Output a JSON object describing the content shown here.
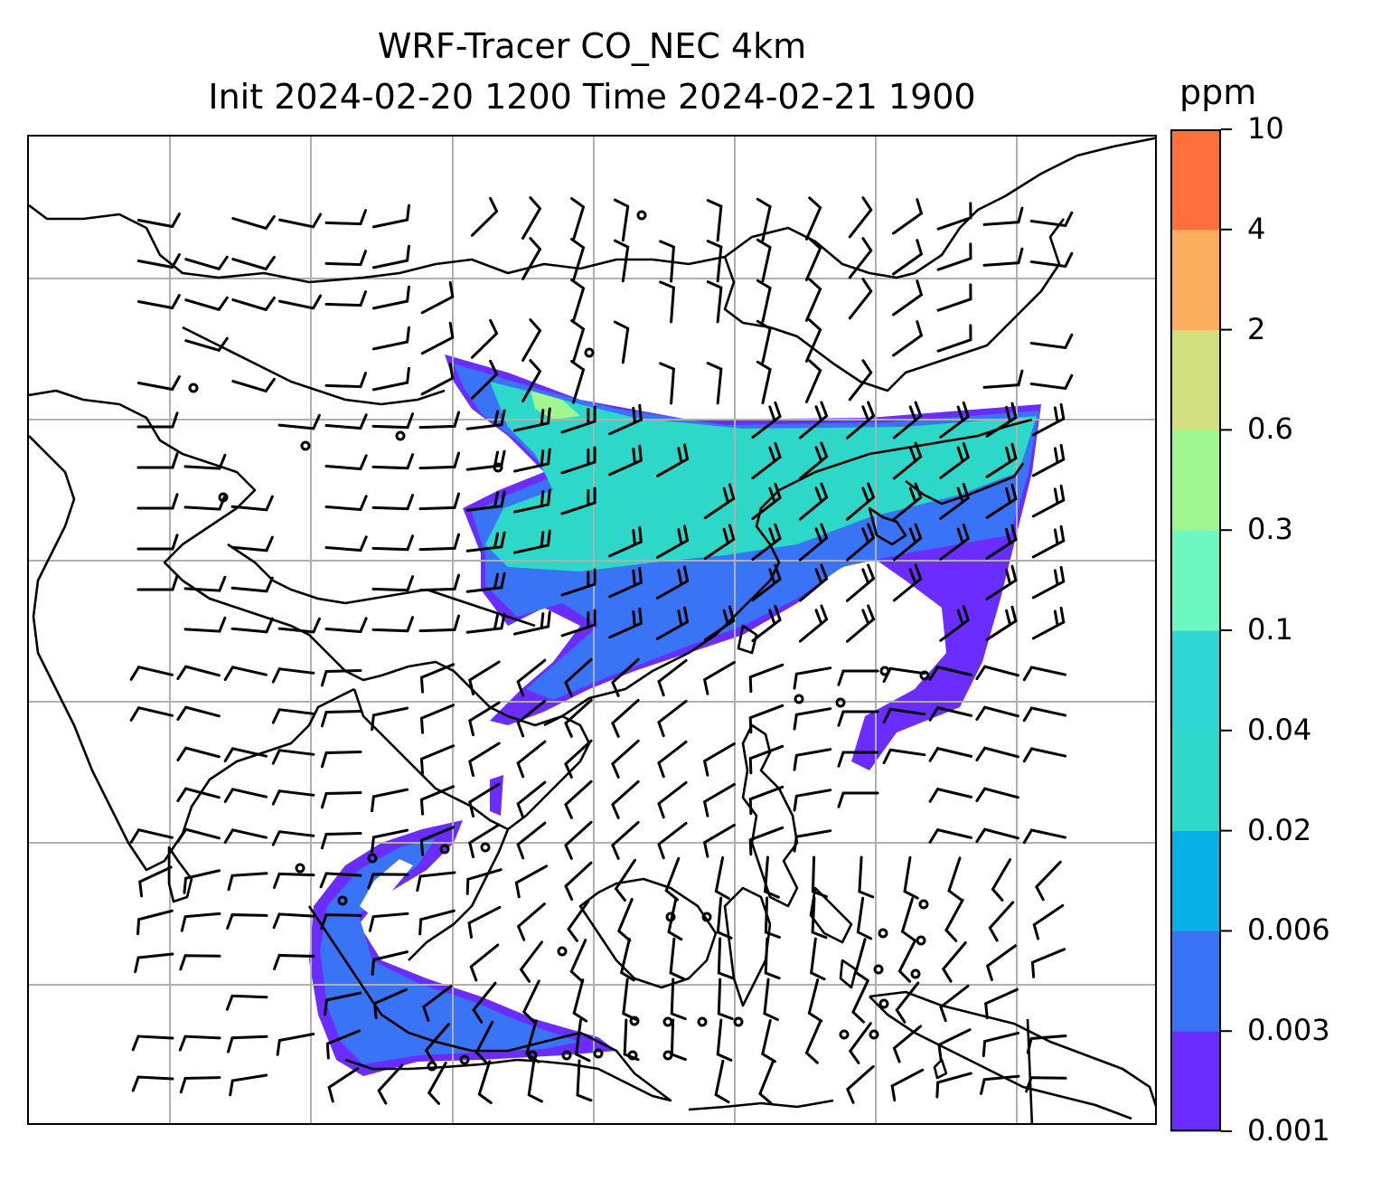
{
  "title": {
    "line1": "WRF-Tracer CO_NEC 4km",
    "line2": "Init 2024-02-20 1200 Time 2024-02-21 1900"
  },
  "colorbar": {
    "unit": "ppm",
    "levels": [
      "0.001",
      "0.003",
      "0.006",
      "0.02",
      "0.04",
      "0.1",
      "0.3",
      "0.6",
      "2",
      "4",
      "10"
    ],
    "colors": [
      "#6a2cff",
      "#3874f5",
      "#05b1e6",
      "#2ed8c8",
      "#2fd6d4",
      "#6cf8c0",
      "#a0f790",
      "#d2e07e",
      "#fbae5e",
      "#ff6f3c",
      "#ff2a14"
    ]
  },
  "map": {
    "grid": true,
    "coastline_color": "#000000",
    "grid_color": "#b0b0b0",
    "wind_barbs": true
  }
}
